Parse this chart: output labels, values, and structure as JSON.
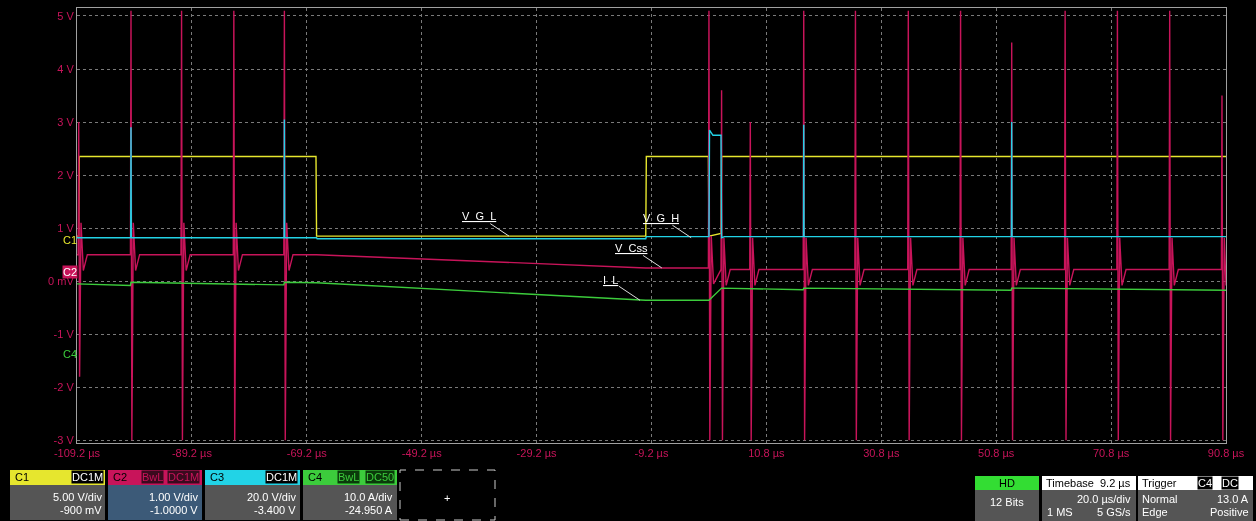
{
  "chart_data": {
    "type": "line",
    "xlim": [
      -109.2,
      90.8
    ],
    "ylim": [
      -3.05,
      5.15
    ],
    "xticks": [
      {
        "value": -109.2,
        "label": "-109.2 µs"
      },
      {
        "value": -89.2,
        "label": "-89.2 µs"
      },
      {
        "value": -69.2,
        "label": "-69.2 µs"
      },
      {
        "value": -49.2,
        "label": "-49.2 µs"
      },
      {
        "value": -29.2,
        "label": "-29.2 µs"
      },
      {
        "value": -9.2,
        "label": "-9.2 µs"
      },
      {
        "value": 10.8,
        "label": "10.8 µs"
      },
      {
        "value": 30.8,
        "label": "30.8 µs"
      },
      {
        "value": 50.8,
        "label": "50.8 µs"
      },
      {
        "value": 70.8,
        "label": "70.8 µs"
      },
      {
        "value": 90.8,
        "label": "90.8 µs"
      }
    ],
    "yticks": [
      {
        "value": 5,
        "label": "5 V"
      },
      {
        "value": 4,
        "label": "4 V"
      },
      {
        "value": 3,
        "label": "3 V"
      },
      {
        "value": 2,
        "label": "2 V"
      },
      {
        "value": 1,
        "label": "1 V"
      },
      {
        "value": 0,
        "label": "0 mV"
      },
      {
        "value": -1,
        "label": "-1 V"
      },
      {
        "value": -2,
        "label": "-2 V"
      },
      {
        "value": -3,
        "label": "-3 V"
      }
    ],
    "grid": true,
    "line_style": "solid",
    "series": [
      {
        "name": "C1",
        "color": "#e6e62e",
        "x": [
          -109.2,
          -108.9,
          -108.8,
          -67.6,
          -67.5,
          -10.2,
          -10.1,
          0.7,
          0.8,
          2.9,
          3.0,
          90.8
        ],
        "values": [
          0.85,
          0.85,
          2.35,
          2.35,
          0.85,
          0.85,
          2.35,
          2.35,
          0.85,
          0.9,
          2.35,
          2.35
        ]
      },
      {
        "name": "C2",
        "color": "#c8145a",
        "x": [
          -109.2,
          -109.0,
          -108.9,
          -108.75,
          -108.5,
          -108.1,
          -107.4,
          -99.9,
          -99.8,
          -99.65,
          -99.4,
          -99.0,
          -98.3,
          -91.1,
          -91.0,
          -90.85,
          -90.6,
          -90.2,
          -89.5,
          -82.0,
          -81.9,
          -81.75,
          -81.5,
          -81.1,
          -80.4,
          -73.2,
          -73.1,
          -72.95,
          -72.7,
          -72.3,
          -71.6,
          -67.5,
          -10.2,
          0.7,
          0.8,
          0.95,
          1.2,
          1.6,
          2.9,
          3.0,
          3.15,
          3.4,
          3.8,
          4.5,
          7.9,
          8.0,
          8.15,
          8.4,
          8.8,
          9.5,
          17.2,
          17.3,
          17.45,
          17.7,
          18.1,
          18.8,
          26.2,
          26.3,
          26.45,
          26.7,
          27.1,
          27.8,
          35.4,
          35.5,
          35.65,
          35.9,
          36.3,
          37.0,
          44.5,
          44.6,
          44.75,
          45.0,
          45.4,
          46.1,
          53.4,
          53.5,
          53.65,
          53.9,
          54.3,
          55.0,
          62.7,
          62.8,
          62.95,
          63.2,
          63.6,
          64.3,
          71.8,
          71.9,
          72.05,
          72.3,
          72.7,
          73.4,
          80.9,
          81.0,
          81.15,
          81.4,
          81.8,
          82.5,
          90.0,
          90.1,
          90.25,
          90.5,
          90.8
        ],
        "values": [
          0.5,
          0.5,
          3.0,
          -1.8,
          1.1,
          0.2,
          0.5,
          0.5,
          5.1,
          -3.0,
          1.1,
          0.2,
          0.5,
          0.5,
          5.1,
          -3.0,
          1.1,
          0.2,
          0.5,
          0.5,
          5.1,
          -3.0,
          1.1,
          0.2,
          0.5,
          0.5,
          5.1,
          -3.0,
          1.1,
          0.2,
          0.5,
          0.5,
          0.25,
          0.25,
          5.1,
          -3.0,
          0.85,
          -0.05,
          0.22,
          3.6,
          -3.0,
          0.82,
          -0.08,
          0.22,
          0.22,
          3.0,
          -3.0,
          0.82,
          -0.08,
          0.22,
          0.22,
          5.1,
          -3.0,
          0.82,
          -0.08,
          0.22,
          0.22,
          5.1,
          -3.0,
          0.82,
          -0.08,
          0.22,
          0.22,
          5.1,
          -3.0,
          0.82,
          -0.08,
          0.22,
          0.22,
          5.1,
          -3.0,
          0.82,
          -0.08,
          0.22,
          0.22,
          4.5,
          -3.0,
          0.82,
          -0.08,
          0.22,
          0.22,
          5.1,
          -3.0,
          0.82,
          -0.08,
          0.22,
          0.22,
          5.1,
          -3.0,
          0.82,
          -0.08,
          0.22,
          0.22,
          5.1,
          -3.0,
          0.82,
          -0.08,
          0.22,
          0.22,
          3.5,
          -3.0,
          0.82,
          -0.08
        ]
      },
      {
        "name": "C3",
        "color": "#22d3e6",
        "x": [
          -109.2,
          -99.85,
          -99.8,
          -99.75,
          -73.15,
          -73.1,
          -73.05,
          -67.5,
          -67.4,
          -10.2,
          -10.1,
          0.8,
          0.9,
          1.5,
          2.9,
          3.0,
          3.5,
          17.25,
          17.3,
          17.35,
          53.45,
          53.5,
          53.55,
          90.8
        ],
        "values": [
          0.82,
          0.82,
          2.9,
          0.82,
          0.82,
          3.05,
          0.82,
          0.82,
          0.8,
          0.8,
          0.84,
          0.84,
          2.85,
          2.75,
          2.75,
          0.82,
          0.84,
          0.84,
          2.95,
          0.84,
          0.84,
          3.0,
          0.84,
          0.84
        ]
      },
      {
        "name": "C4",
        "color": "#3ccc3c",
        "x": [
          -109.2,
          -99.9,
          -99.8,
          -73.2,
          -73.1,
          -67.5,
          -10.2,
          0.8,
          3.0,
          17.2,
          17.3,
          53.4,
          53.5,
          90.8
        ],
        "values": [
          -0.05,
          -0.08,
          -0.02,
          -0.07,
          -0.02,
          -0.03,
          -0.36,
          -0.36,
          -0.13,
          -0.16,
          -0.13,
          -0.17,
          -0.13,
          -0.17
        ]
      }
    ],
    "annotations": [
      {
        "text": "V_G_L",
        "x": -34,
        "y": 0.85
      },
      {
        "text": "V_G_H",
        "x": -2.3,
        "y": 0.82
      },
      {
        "text": "V_Css",
        "x": -7.4,
        "y": 0.25
      },
      {
        "text": "I_L",
        "x": -11.2,
        "y": -0.36
      },
      "C1",
      "C2",
      "C4",
      "DC1M",
      "5.00 V/div",
      "-900 mV",
      "BwL",
      "DC1M",
      "1.00 V/div",
      "-1.0000 V",
      "DC1M",
      "20.0 V/div",
      "-3.400 V",
      "BwL",
      "DC50",
      "10.0 A/div",
      "-24.950 A",
      "+",
      "HD",
      "12 Bits",
      "Timebase",
      "9.2 µs",
      "20.0 µs/div",
      "1 MS",
      "5 GS/s",
      "Trigger",
      "C4",
      "DC",
      "Normal",
      "13.0 A",
      "Edge",
      "Positive"
    ]
  }
}
